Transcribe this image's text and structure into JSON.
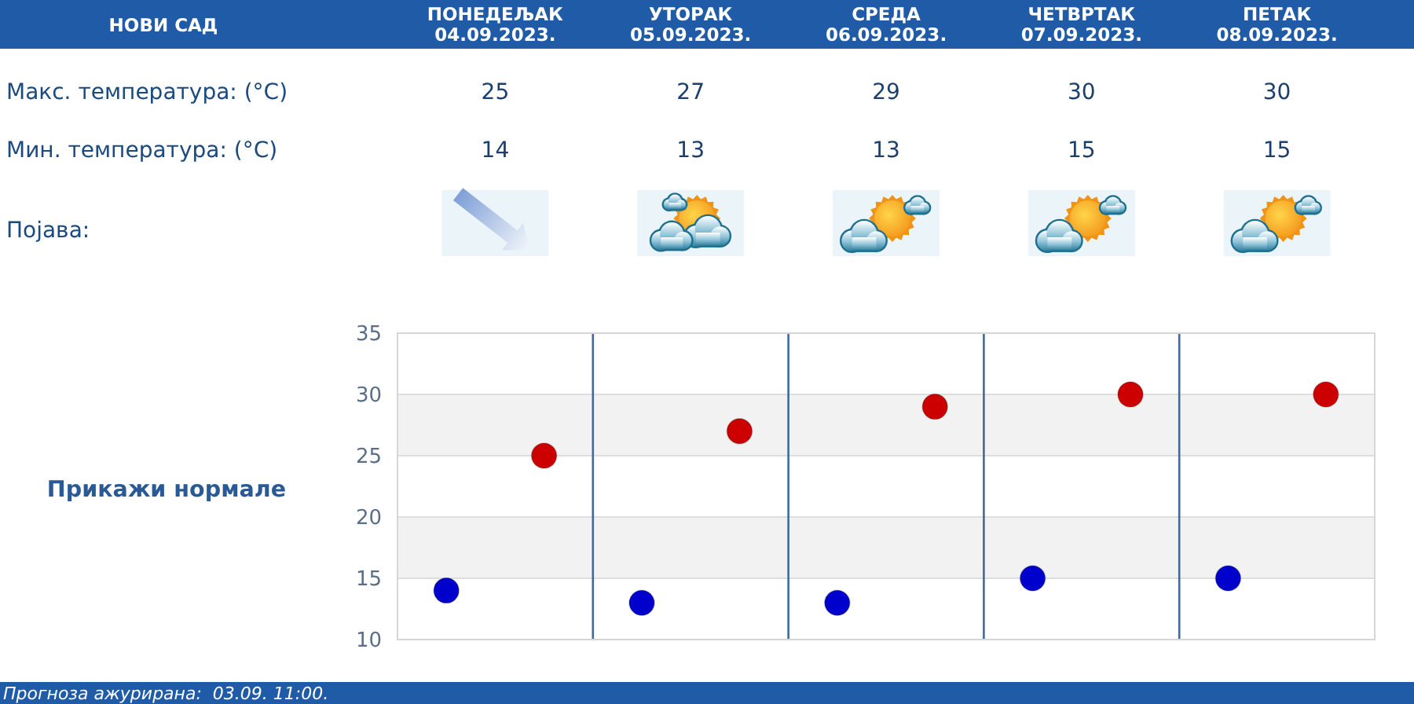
{
  "chart_data": {
    "type": "scatter",
    "title": "НОВИ САД",
    "categories": [
      null,
      null,
      null,
      null,
      null
    ],
    "series": [
      {
        "color": "#cc0000",
        "values": [
          25,
          27,
          29,
          30,
          30
        ]
      },
      {
        "color": "#0000cc",
        "values": [
          14,
          13,
          13,
          15,
          15
        ]
      }
    ],
    "ylim": [
      10,
      35
    ],
    "yticks": [
      10,
      15,
      20,
      25,
      30,
      35
    ],
    "grid": true,
    "marker": "circle",
    "data_labels": true,
    "bands": [
      {
        "axis": "y",
        "from": 15,
        "to": 20,
        "color": "#f2f2f2"
      },
      {
        "axis": "y",
        "from": 25,
        "to": 30,
        "color": "#f2f2f2"
      }
    ],
    "annotations": [
      "ПОНЕДЕЉАК 04.09.2023.",
      "УТОРАК 05.09.2023.",
      "СРЕДА 06.09.2023.",
      "ЧЕТВРТАК 07.09.2023.",
      "ПЕТАК 08.09.2023.",
      "Макс. температура: (°C)",
      "Мин. температура: (°C)",
      "Појава:",
      "Прикажи нормале",
      "Прогноза ажурирана:  03.09. 11:00."
    ]
  }
}
